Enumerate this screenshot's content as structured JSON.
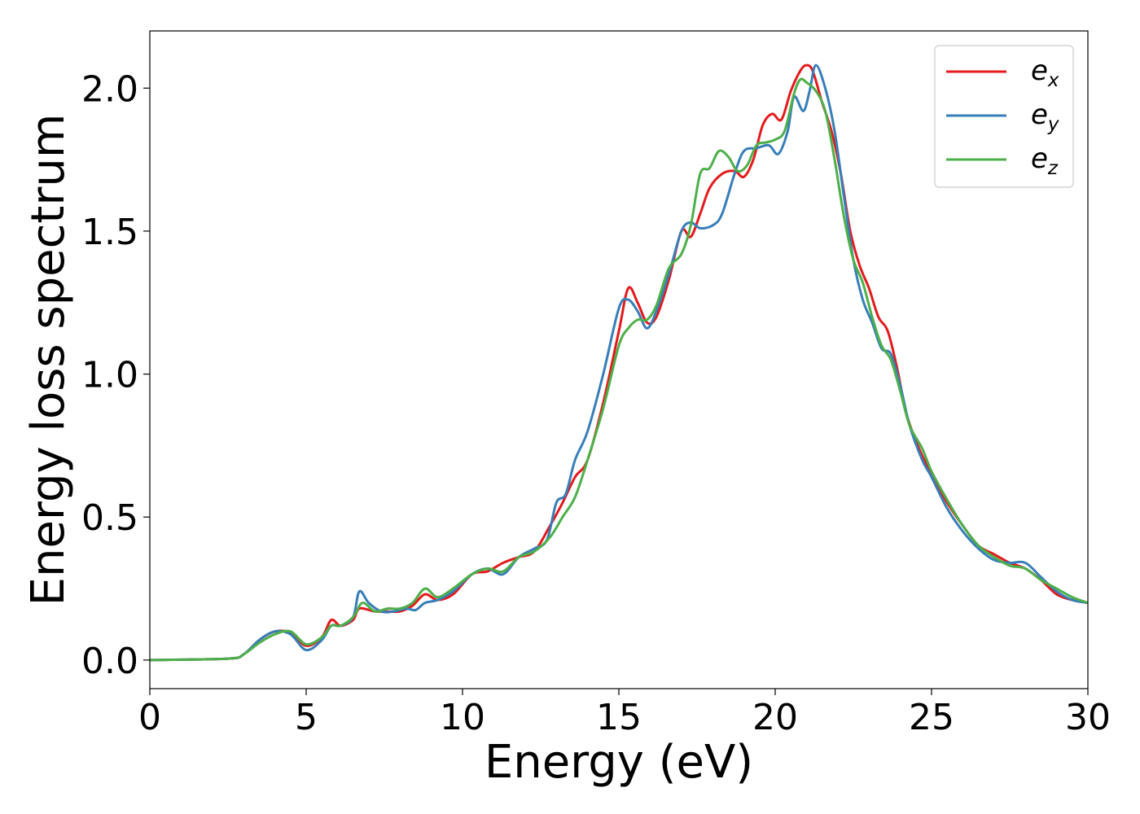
{
  "chart_data": {
    "type": "line",
    "xlabel": "Energy (eV)",
    "ylabel": "Energy loss spectrum",
    "xlim": [
      0,
      30
    ],
    "ylim": [
      -0.1,
      2.2
    ],
    "xticks": [
      0,
      5,
      10,
      15,
      20,
      25,
      30
    ],
    "yticks": [
      0.0,
      0.5,
      1.0,
      1.5,
      2.0
    ],
    "xtick_labels": [
      "0",
      "5",
      "10",
      "15",
      "20",
      "25",
      "30"
    ],
    "ytick_labels": [
      "0.0",
      "0.5",
      "1.0",
      "1.5",
      "2.0"
    ],
    "grid": false,
    "legend_position": "top-right",
    "series": [
      {
        "name": "e_x",
        "legend_base": "e",
        "legend_sub": "x",
        "color": "#e41a1c",
        "x": [
          0,
          2.5,
          3.0,
          3.5,
          4.0,
          4.5,
          5.0,
          5.5,
          5.8,
          6.1,
          6.5,
          6.7,
          7.2,
          7.6,
          8.0,
          8.4,
          8.8,
          9.2,
          9.7,
          10.3,
          10.8,
          11.3,
          11.8,
          12.3,
          12.8,
          13.2,
          13.6,
          14.0,
          14.5,
          15.0,
          15.3,
          15.6,
          15.9,
          16.2,
          16.6,
          17.0,
          17.3,
          17.6,
          17.9,
          18.3,
          18.7,
          19.0,
          19.3,
          19.6,
          19.9,
          20.2,
          20.5,
          20.8,
          21.0,
          21.2,
          21.5,
          21.8,
          22.1,
          22.4,
          22.7,
          23.0,
          23.3,
          23.6,
          23.9,
          24.2,
          24.6,
          25.0,
          25.5,
          26.0,
          26.5,
          27.0,
          27.5,
          28.0,
          28.5,
          29.0,
          29.5,
          30.0
        ],
        "values": [
          0.0,
          0.005,
          0.02,
          0.07,
          0.1,
          0.095,
          0.05,
          0.08,
          0.14,
          0.12,
          0.14,
          0.18,
          0.17,
          0.17,
          0.17,
          0.19,
          0.23,
          0.21,
          0.23,
          0.3,
          0.31,
          0.34,
          0.36,
          0.38,
          0.47,
          0.55,
          0.64,
          0.7,
          0.9,
          1.15,
          1.3,
          1.25,
          1.18,
          1.2,
          1.33,
          1.5,
          1.48,
          1.56,
          1.65,
          1.7,
          1.71,
          1.69,
          1.75,
          1.87,
          1.91,
          1.89,
          1.99,
          2.06,
          2.08,
          2.06,
          1.95,
          1.85,
          1.7,
          1.5,
          1.38,
          1.3,
          1.2,
          1.15,
          1.02,
          0.86,
          0.74,
          0.65,
          0.55,
          0.47,
          0.4,
          0.37,
          0.34,
          0.32,
          0.28,
          0.23,
          0.21,
          0.2
        ]
      },
      {
        "name": "e_y",
        "legend_base": "e",
        "legend_sub": "y",
        "color": "#377eb8",
        "x": [
          0,
          2.5,
          3.0,
          3.5,
          4.0,
          4.5,
          5.0,
          5.5,
          5.8,
          6.1,
          6.5,
          6.7,
          7.0,
          7.4,
          7.8,
          8.2,
          8.5,
          8.8,
          9.2,
          9.7,
          10.3,
          10.8,
          11.3,
          11.8,
          12.3,
          12.7,
          13.0,
          13.3,
          13.6,
          14.0,
          14.5,
          15.0,
          15.3,
          15.6,
          15.9,
          16.2,
          16.6,
          17.0,
          17.3,
          17.6,
          18.0,
          18.3,
          18.7,
          19.0,
          19.4,
          19.8,
          20.1,
          20.4,
          20.6,
          20.9,
          21.1,
          21.3,
          21.6,
          21.9,
          22.2,
          22.5,
          22.8,
          23.1,
          23.4,
          23.7,
          24.0,
          24.3,
          24.7,
          25.0,
          25.5,
          26.0,
          26.5,
          27.0,
          27.5,
          28.0,
          28.5,
          29.0,
          29.5,
          30.0
        ],
        "values": [
          0.0,
          0.005,
          0.02,
          0.07,
          0.1,
          0.09,
          0.035,
          0.07,
          0.12,
          0.12,
          0.15,
          0.24,
          0.2,
          0.17,
          0.17,
          0.18,
          0.175,
          0.2,
          0.21,
          0.24,
          0.3,
          0.32,
          0.3,
          0.36,
          0.39,
          0.42,
          0.55,
          0.58,
          0.7,
          0.8,
          1.0,
          1.23,
          1.26,
          1.22,
          1.16,
          1.22,
          1.35,
          1.5,
          1.53,
          1.51,
          1.52,
          1.56,
          1.7,
          1.78,
          1.79,
          1.8,
          1.77,
          1.85,
          1.97,
          1.92,
          1.99,
          2.08,
          2.0,
          1.85,
          1.62,
          1.4,
          1.26,
          1.18,
          1.09,
          1.07,
          0.96,
          0.82,
          0.7,
          0.64,
          0.53,
          0.45,
          0.39,
          0.35,
          0.34,
          0.34,
          0.29,
          0.24,
          0.21,
          0.2
        ]
      },
      {
        "name": "e_z",
        "legend_base": "e",
        "legend_sub": "z",
        "color": "#4daf4a",
        "x": [
          0,
          2.5,
          3.0,
          3.5,
          4.0,
          4.5,
          5.0,
          5.5,
          5.8,
          6.1,
          6.5,
          6.8,
          7.2,
          7.6,
          8.0,
          8.4,
          8.8,
          9.2,
          9.7,
          10.3,
          10.8,
          11.3,
          11.8,
          12.3,
          12.8,
          13.2,
          13.6,
          14.0,
          14.5,
          15.0,
          15.3,
          15.6,
          15.9,
          16.2,
          16.6,
          17.0,
          17.3,
          17.6,
          17.9,
          18.2,
          18.5,
          18.8,
          19.1,
          19.4,
          19.7,
          20.0,
          20.3,
          20.6,
          20.8,
          21.0,
          21.3,
          21.6,
          21.9,
          22.2,
          22.5,
          22.8,
          23.1,
          23.4,
          23.7,
          24.0,
          24.3,
          24.7,
          25.0,
          25.5,
          26.0,
          26.5,
          27.0,
          27.5,
          28.0,
          28.5,
          29.0,
          29.5,
          30.0
        ],
        "values": [
          0.0,
          0.005,
          0.02,
          0.06,
          0.09,
          0.1,
          0.055,
          0.08,
          0.12,
          0.12,
          0.15,
          0.2,
          0.17,
          0.18,
          0.18,
          0.2,
          0.25,
          0.22,
          0.25,
          0.3,
          0.32,
          0.31,
          0.36,
          0.38,
          0.43,
          0.5,
          0.57,
          0.7,
          0.88,
          1.1,
          1.16,
          1.19,
          1.19,
          1.24,
          1.37,
          1.42,
          1.52,
          1.7,
          1.72,
          1.78,
          1.76,
          1.71,
          1.73,
          1.8,
          1.81,
          1.82,
          1.85,
          1.98,
          2.03,
          2.02,
          1.99,
          1.92,
          1.75,
          1.55,
          1.4,
          1.32,
          1.2,
          1.1,
          1.05,
          0.94,
          0.82,
          0.74,
          0.66,
          0.56,
          0.47,
          0.4,
          0.36,
          0.33,
          0.32,
          0.28,
          0.25,
          0.22,
          0.2
        ]
      }
    ]
  }
}
